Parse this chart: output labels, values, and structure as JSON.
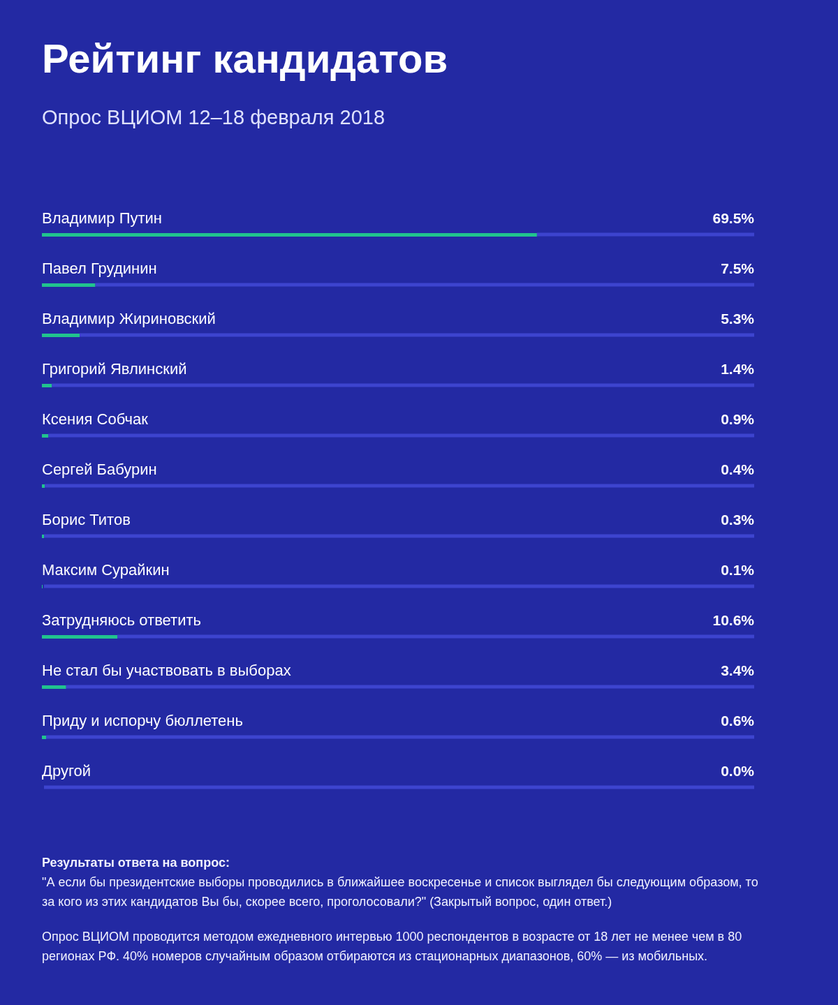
{
  "chart_data": {
    "type": "bar",
    "orientation": "horizontal",
    "title": "Рейтинг кандидатов",
    "subtitle": "Опрос ВЦИОМ 12–18 февраля 2018",
    "categories": [
      "Владимир Путин",
      "Павел Грудинин",
      "Владимир Жириновский",
      "Григорий Явлинский",
      "Ксения Собчак",
      "Сергей Бабурин",
      "Борис Титов",
      "Максим Сурайкин",
      "Затрудняюсь ответить",
      "Не стал бы участвовать в выборах",
      "Приду и испорчу бюллетень",
      "Другой"
    ],
    "series": [
      {
        "color": "#21c38e",
        "values": [
          69.5,
          7.5,
          5.3,
          1.4,
          0.9,
          0.4,
          0.3,
          0.1,
          10.6,
          3.4,
          0.6,
          0.0
        ],
        "value_labels": [
          "69.5%",
          "7.5%",
          "5.3%",
          "1.4%",
          "0.9%",
          "0.4%",
          "0.3%",
          "0.1%",
          "10.6%",
          "3.4%",
          "0.6%",
          "0.0%"
        ]
      }
    ],
    "xlim": [
      0,
      100
    ],
    "tick_labels": "y",
    "annotations": [
      "Результаты ответа на вопрос:",
      "\"А если бы президентские выборы проводились в ближайшее воскресенье и список выглядел бы следующим образом, то за кого из этих кандидатов Вы бы, скорее всего, проголосовали?\" (Закрытый вопрос, один ответ.)",
      "Опрос ВЦИОМ проводится методом ежедневного интервью 1000 респондентов в возрасте от 18 лет не менее чем в 80 регионах РФ. 40% номеров случайным образом отбираются из стационарных диапазонов, 60% — из мобильных."
    ]
  }
}
